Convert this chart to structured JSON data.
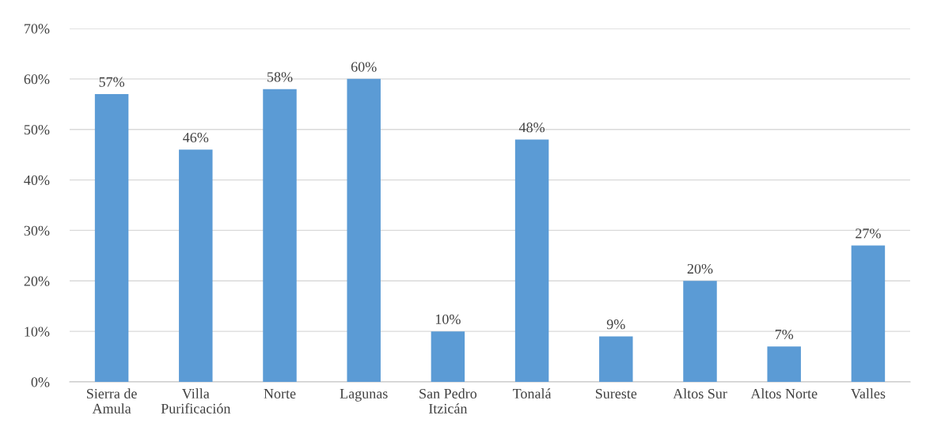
{
  "chart_data": {
    "type": "bar",
    "categories": [
      "Sierra de\nAmula",
      "Villa\nPurificación",
      "Norte",
      "Lagunas",
      "San Pedro\nItzicán",
      "Tonalá",
      "Sureste",
      "Altos Sur",
      "Altos Norte",
      "Valles"
    ],
    "values": [
      57,
      46,
      58,
      60,
      10,
      48,
      9,
      20,
      7,
      27
    ],
    "value_labels": [
      "57%",
      "46%",
      "58%",
      "60%",
      "10%",
      "48%",
      "9%",
      "20%",
      "7%",
      "27%"
    ],
    "color": "#5b9bd5",
    "ylim": [
      0,
      70
    ],
    "yticks": [
      {
        "value": 0,
        "label": "0%"
      },
      {
        "value": 10,
        "label": "10%"
      },
      {
        "value": 20,
        "label": "20%"
      },
      {
        "value": 30,
        "label": "30%"
      },
      {
        "value": 40,
        "label": "40%"
      },
      {
        "value": 50,
        "label": "50%"
      },
      {
        "value": 60,
        "label": "60%"
      },
      {
        "value": 70,
        "label": "70%"
      }
    ],
    "grid": "y",
    "legend": false
  }
}
